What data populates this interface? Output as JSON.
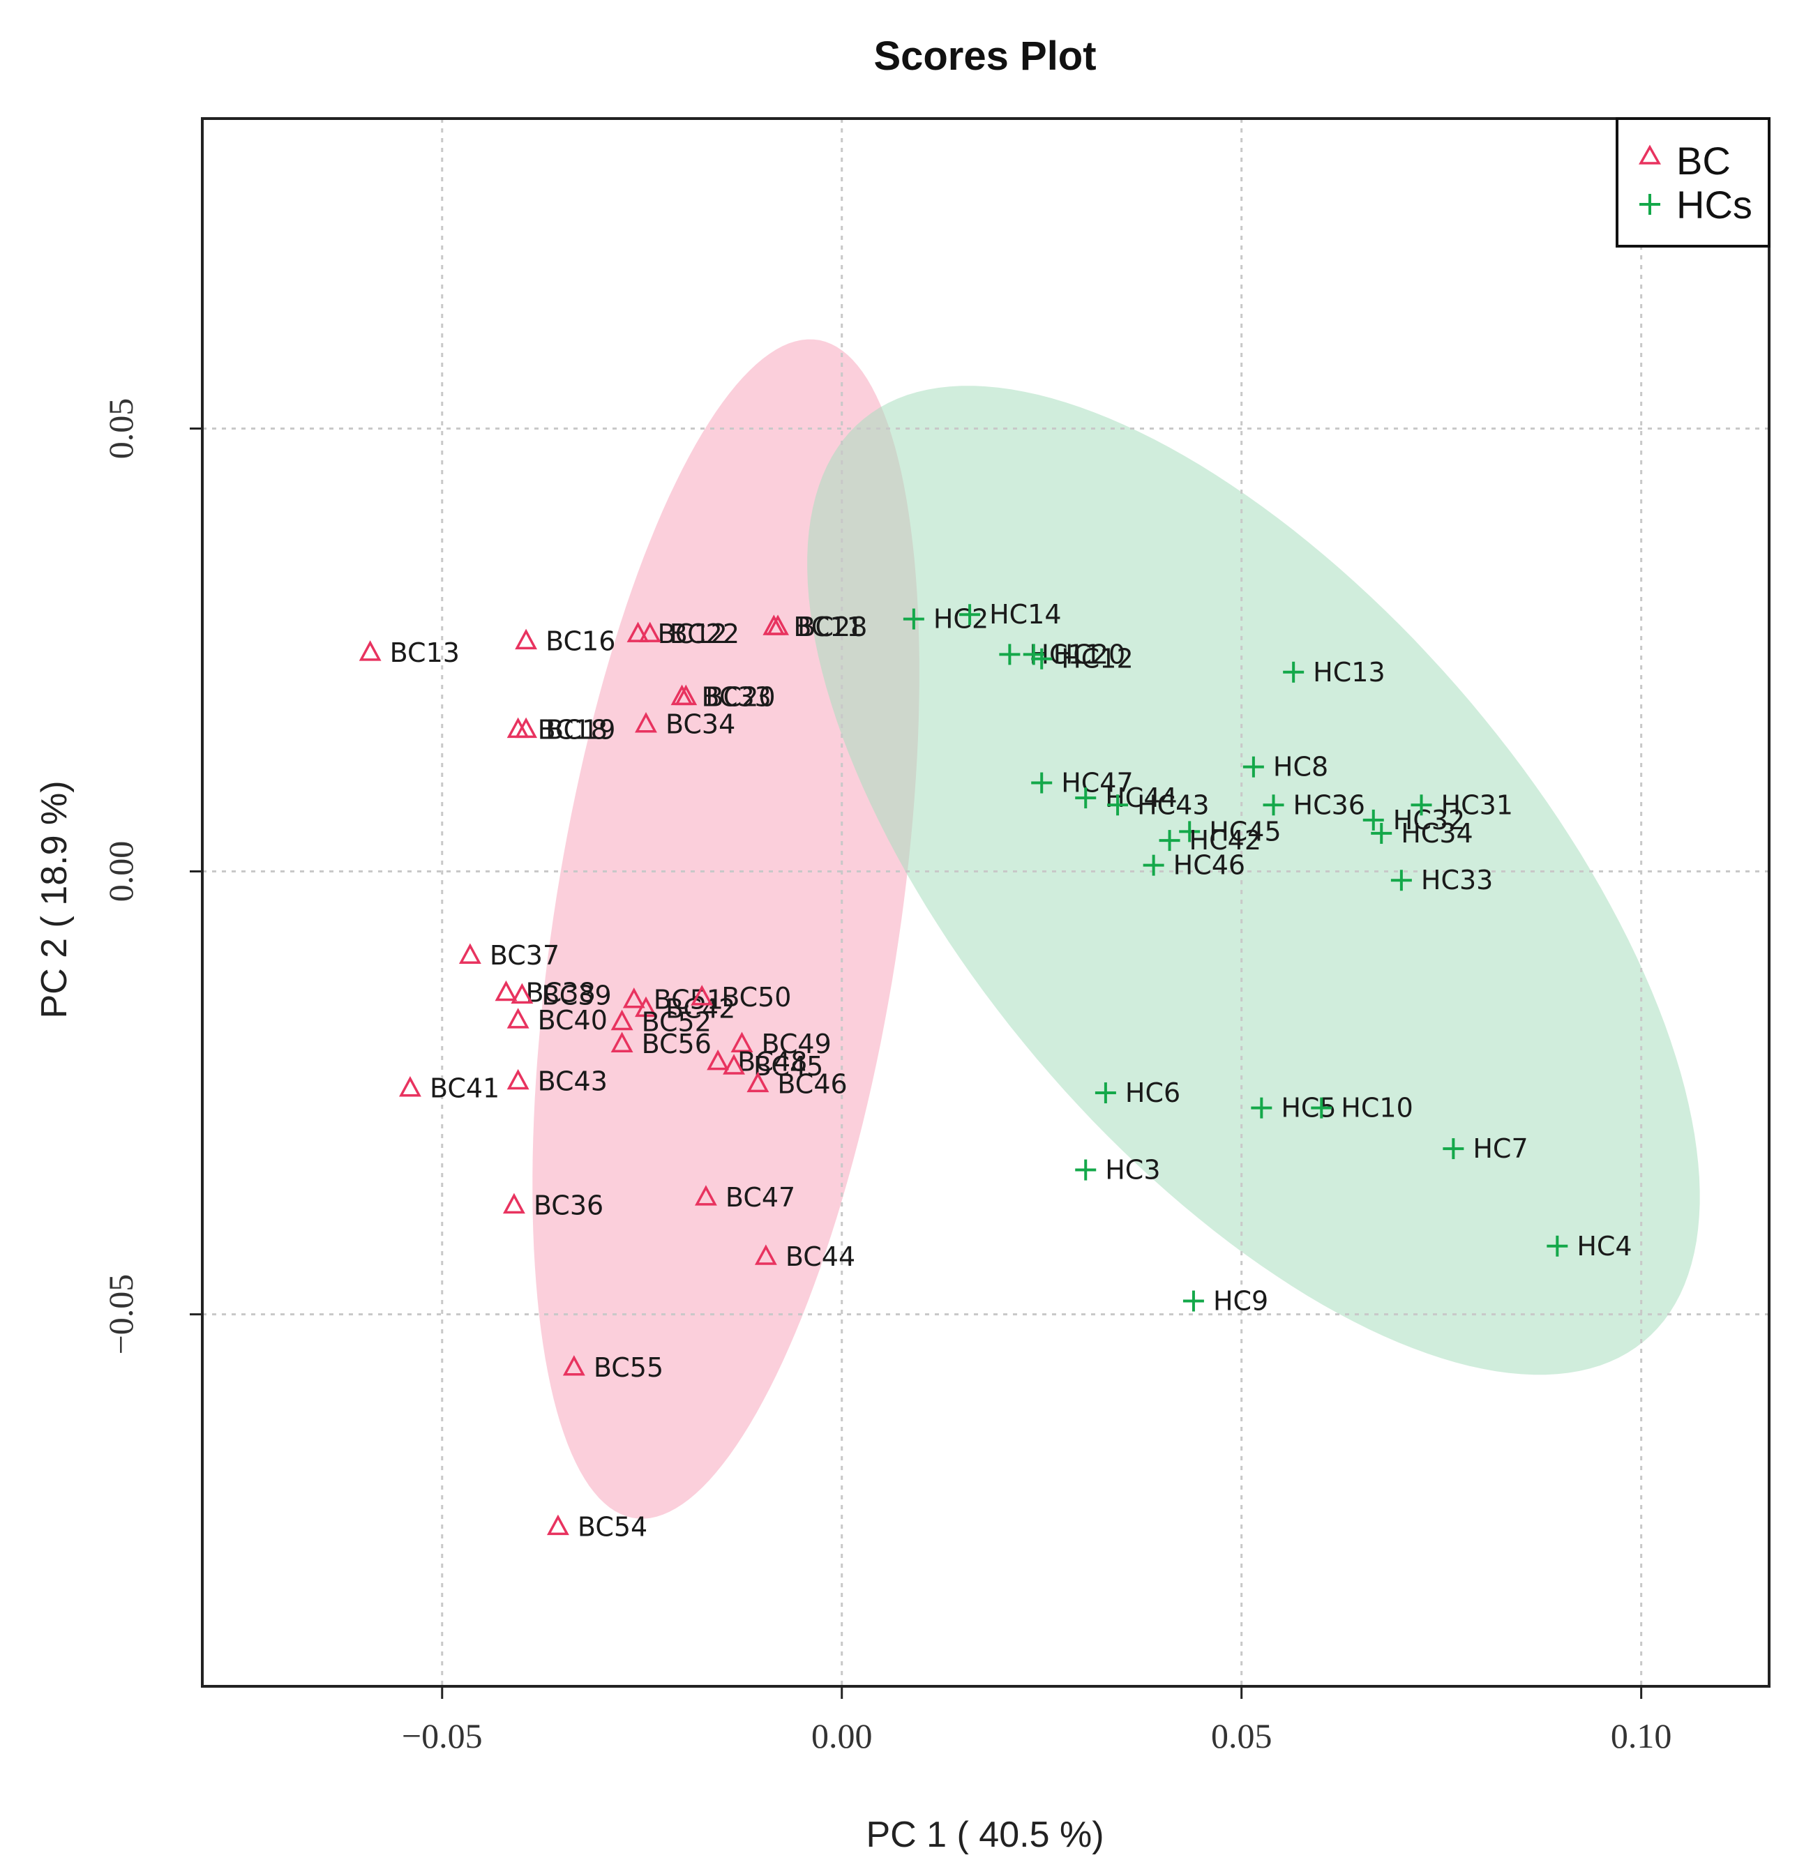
{
  "chart_data": {
    "type": "scatter",
    "title": "Scores Plot",
    "xlabel": "PC 1 ( 40.5 %)",
    "ylabel": "PC 2 ( 18.9 %)",
    "xlim": [
      -0.08,
      0.116
    ],
    "ylim": [
      -0.092,
      0.085
    ],
    "xticks": [
      {
        "value": -0.05,
        "label": "−0.05"
      },
      {
        "value": 0.0,
        "label": "0.00"
      },
      {
        "value": 0.05,
        "label": "0.05"
      },
      {
        "value": 0.1,
        "label": "0.10"
      }
    ],
    "yticks": [
      {
        "value": 0.05,
        "label": "0.05"
      },
      {
        "value": 0.0,
        "label": "0.00"
      },
      {
        "value": -0.05,
        "label": "−0.05"
      }
    ],
    "grid": true,
    "legend": {
      "placement": "top-right",
      "entries": [
        {
          "name": "BC",
          "marker": "triangle",
          "color": "#e8335f"
        },
        {
          "name": "HCs",
          "marker": "plus",
          "color": "#14a84a"
        }
      ]
    },
    "confidence_ellipses": [
      {
        "group": "BC",
        "center": [
          -0.0145,
          -0.0065
        ],
        "semi_axis_1": 0.0675,
        "semi_axis_2": 0.0215,
        "angle_deg": 80,
        "color": "#f7a8bd",
        "opacity": 0.55
      },
      {
        "group": "HCs",
        "center": [
          0.0515,
          -0.001
        ],
        "semi_axis_1": 0.0715,
        "semi_axis_2": 0.0335,
        "angle_deg": -45,
        "color": "#a9dfbf",
        "opacity": 0.55
      }
    ],
    "series": [
      {
        "name": "BC",
        "points": [
          {
            "x": -0.059,
            "y": 0.0247,
            "label": "BC13"
          },
          {
            "x": -0.0395,
            "y": 0.026,
            "label": "BC16"
          },
          {
            "x": -0.0255,
            "y": 0.0268,
            "label": "BC12"
          },
          {
            "x": -0.024,
            "y": 0.0268,
            "label": "BC22"
          },
          {
            "x": -0.0085,
            "y": 0.0276,
            "label": "BC11"
          },
          {
            "x": -0.008,
            "y": 0.0276,
            "label": "BC28"
          },
          {
            "x": -0.02,
            "y": 0.0197,
            "label": "BC33"
          },
          {
            "x": -0.0195,
            "y": 0.0197,
            "label": "BC20"
          },
          {
            "x": -0.0405,
            "y": 0.016,
            "label": "BC18"
          },
          {
            "x": -0.0395,
            "y": 0.016,
            "label": "BC19"
          },
          {
            "x": -0.0245,
            "y": 0.0166,
            "label": "BC34"
          },
          {
            "x": -0.0465,
            "y": -0.0095,
            "label": "BC37"
          },
          {
            "x": -0.042,
            "y": -0.0137,
            "label": "BC38"
          },
          {
            "x": -0.04,
            "y": -0.014,
            "label": "BC39"
          },
          {
            "x": -0.0405,
            "y": -0.0168,
            "label": "BC40"
          },
          {
            "x": -0.026,
            "y": -0.0145,
            "label": "BC51"
          },
          {
            "x": -0.0245,
            "y": -0.0155,
            "label": "BC42"
          },
          {
            "x": -0.0175,
            "y": -0.0142,
            "label": "BC50"
          },
          {
            "x": -0.0275,
            "y": -0.017,
            "label": "BC52"
          },
          {
            "x": -0.0275,
            "y": -0.0195,
            "label": "BC56"
          },
          {
            "x": -0.0125,
            "y": -0.0195,
            "label": "BC49"
          },
          {
            "x": -0.0155,
            "y": -0.0215,
            "label": "BC48"
          },
          {
            "x": -0.0135,
            "y": -0.022,
            "label": "BC45"
          },
          {
            "x": -0.0105,
            "y": -0.024,
            "label": "BC46"
          },
          {
            "x": -0.054,
            "y": -0.0245,
            "label": "BC41"
          },
          {
            "x": -0.0405,
            "y": -0.0237,
            "label": "BC43"
          },
          {
            "x": -0.041,
            "y": -0.0377,
            "label": "BC36"
          },
          {
            "x": -0.017,
            "y": -0.0368,
            "label": "BC47"
          },
          {
            "x": -0.0095,
            "y": -0.0435,
            "label": "BC44"
          },
          {
            "x": -0.0335,
            "y": -0.056,
            "label": "BC55"
          },
          {
            "x": -0.0355,
            "y": -0.074,
            "label": "BC54"
          }
        ]
      },
      {
        "name": "HCs",
        "points": [
          {
            "x": 0.009,
            "y": 0.0285,
            "label": "HC2"
          },
          {
            "x": 0.016,
            "y": 0.029,
            "label": "HC14"
          },
          {
            "x": 0.021,
            "y": 0.0245,
            "label": "HC11"
          },
          {
            "x": 0.024,
            "y": 0.0245,
            "label": "HC20"
          },
          {
            "x": 0.025,
            "y": 0.024,
            "label": "HC12"
          },
          {
            "x": 0.0565,
            "y": 0.0225,
            "label": "HC13"
          },
          {
            "x": 0.0515,
            "y": 0.0118,
            "label": "HC8"
          },
          {
            "x": 0.025,
            "y": 0.01,
            "label": "HC47"
          },
          {
            "x": 0.0305,
            "y": 0.0083,
            "label": "HC44"
          },
          {
            "x": 0.0345,
            "y": 0.0075,
            "label": "HC43"
          },
          {
            "x": 0.054,
            "y": 0.0075,
            "label": "HC36"
          },
          {
            "x": 0.0665,
            "y": 0.0058,
            "label": "HC32"
          },
          {
            "x": 0.0725,
            "y": 0.0075,
            "label": "HC31"
          },
          {
            "x": 0.0675,
            "y": 0.0043,
            "label": "HC34"
          },
          {
            "x": 0.0435,
            "y": 0.0045,
            "label": "HC45"
          },
          {
            "x": 0.041,
            "y": 0.0035,
            "label": "HC42"
          },
          {
            "x": 0.039,
            "y": 0.0007,
            "label": "HC46"
          },
          {
            "x": 0.07,
            "y": -0.001,
            "label": "HC33"
          },
          {
            "x": 0.033,
            "y": -0.025,
            "label": "HC6"
          },
          {
            "x": 0.0525,
            "y": -0.0267,
            "label": "HC5"
          },
          {
            "x": 0.06,
            "y": -0.0267,
            "label": "HC10"
          },
          {
            "x": 0.0765,
            "y": -0.0313,
            "label": "HC7"
          },
          {
            "x": 0.0305,
            "y": -0.0337,
            "label": "HC3"
          },
          {
            "x": 0.0895,
            "y": -0.0423,
            "label": "HC4"
          },
          {
            "x": 0.044,
            "y": -0.0485,
            "label": "HC9"
          }
        ]
      }
    ]
  }
}
